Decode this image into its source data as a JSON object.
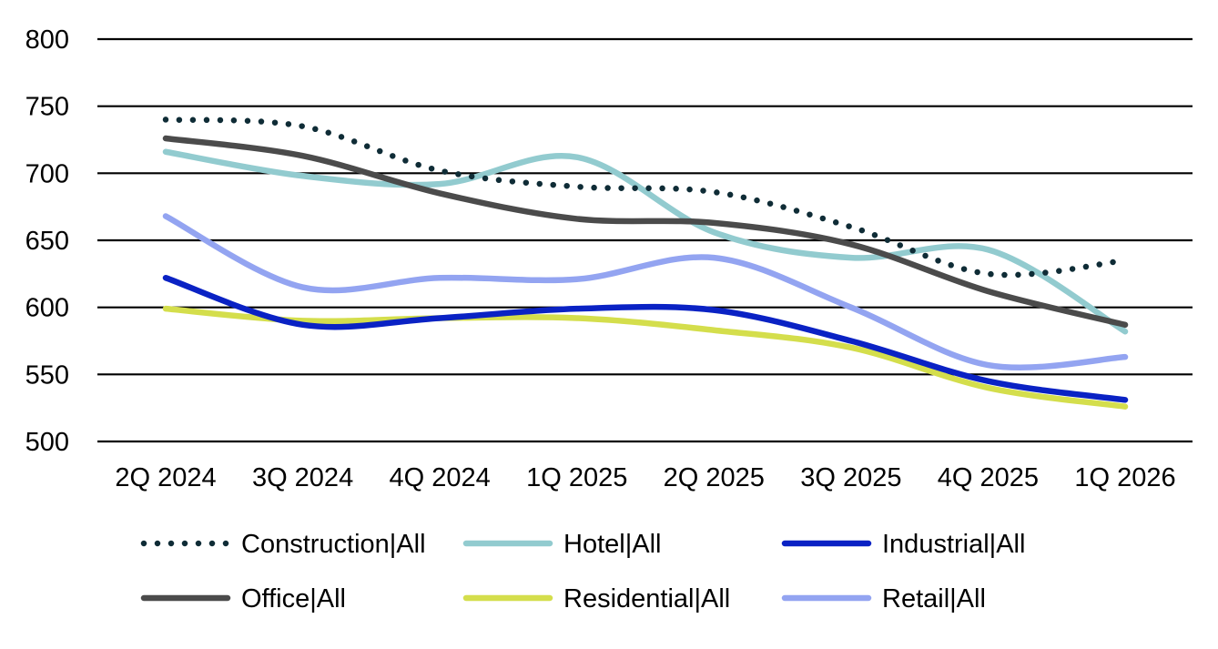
{
  "chart_data": {
    "type": "line",
    "title": "",
    "xlabel": "",
    "ylabel": "",
    "ylim": [
      500,
      800
    ],
    "yticks": [
      500,
      550,
      600,
      650,
      700,
      750,
      800
    ],
    "categories": [
      "2Q 2024",
      "3Q 2024",
      "4Q 2024",
      "1Q 2025",
      "2Q 2025",
      "3Q 2025",
      "4Q 2025",
      "1Q 2026"
    ],
    "grid": true,
    "legend_position": "bottom",
    "series": [
      {
        "name": "Construction|All",
        "color": "#0f2c36",
        "style": "dotted",
        "values": [
          740,
          735,
          702,
          690,
          686,
          660,
          625,
          635
        ]
      },
      {
        "name": "Hotel|All",
        "color": "#92cbcf",
        "style": "solid",
        "values": [
          716,
          698,
          692,
          712,
          656,
          637,
          643,
          582
        ]
      },
      {
        "name": "Industrial|All",
        "color": "#0a22c4",
        "style": "solid",
        "values": [
          622,
          587,
          592,
          599,
          598,
          575,
          545,
          531
        ]
      },
      {
        "name": "Office|All",
        "color": "#4b4b4b",
        "style": "solid",
        "values": [
          726,
          713,
          685,
          666,
          663,
          647,
          612,
          587
        ]
      },
      {
        "name": "Residential|All",
        "color": "#d4de4c",
        "style": "solid",
        "values": [
          599,
          590,
          592,
          592,
          583,
          570,
          540,
          526
        ]
      },
      {
        "name": "Retail|All",
        "color": "#93a4f1",
        "style": "solid",
        "values": [
          668,
          615,
          622,
          621,
          637,
          600,
          557,
          563
        ]
      }
    ]
  }
}
